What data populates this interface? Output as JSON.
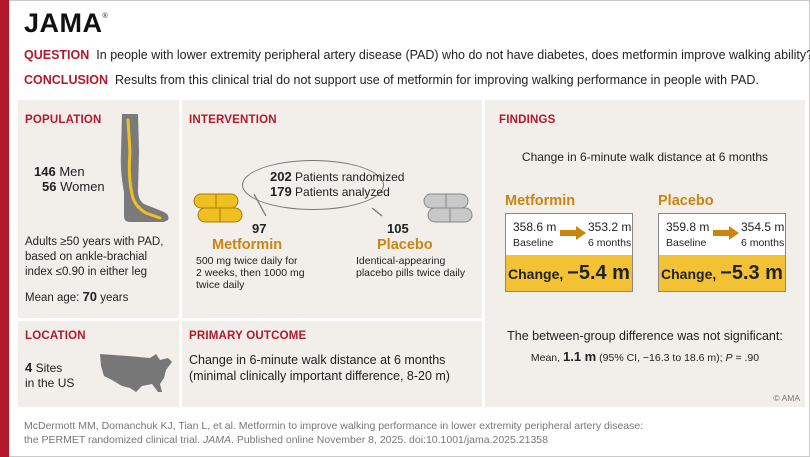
{
  "brand": {
    "logo": "JAMA"
  },
  "question": {
    "label": "QUESTION",
    "text": "In people with lower extremity peripheral artery disease (PAD) who do not have diabetes, does metformin improve walking ability?"
  },
  "conclusion": {
    "label": "CONCLUSION",
    "text": "Results from this clinical trial do not support use of metformin for improving walking performance in people with PAD."
  },
  "population": {
    "title": "POPULATION",
    "men_count": "146",
    "men_label": "Men",
    "women_count": "56",
    "women_label": "Women",
    "desc_1": "Adults ≥50 years with PAD,",
    "desc_2": "based on ankle-brachial",
    "desc_3": "index ≤0.90 in either leg",
    "mean_age_label": "Mean age:",
    "mean_age_value": "70",
    "mean_age_unit": "years"
  },
  "location": {
    "title": "LOCATION",
    "sites_count": "4",
    "sites_label": "Sites",
    "region": "in the US"
  },
  "intervention": {
    "title": "INTERVENTION",
    "randomized_count": "202",
    "randomized_label": "Patients randomized",
    "analyzed_count": "179",
    "analyzed_label": "Patients analyzed",
    "metformin": {
      "count": "97",
      "name": "Metformin",
      "desc_1": "500 mg twice daily for",
      "desc_2": "2 weeks, then 1000 mg",
      "desc_3": "twice daily"
    },
    "placebo": {
      "count": "105",
      "name": "Placebo",
      "desc_1": "Identical-appearing",
      "desc_2": "placebo pills twice daily"
    }
  },
  "primary_outcome": {
    "title": "PRIMARY OUTCOME",
    "line_1": "Change in 6-minute walk distance at 6 months",
    "line_2": "(minimal clinically important difference, 8-20 m)"
  },
  "findings": {
    "title": "FINDINGS",
    "subtitle": "Change in 6-minute walk distance at 6 months",
    "metformin": {
      "name": "Metformin",
      "baseline_value": "358.6 m",
      "baseline_label": "Baseline",
      "followup_value": "353.2 m",
      "followup_label": "6 months",
      "change_label": "Change,",
      "change_value": "−5.4 m"
    },
    "placebo": {
      "name": "Placebo",
      "baseline_value": "359.8 m",
      "baseline_label": "Baseline",
      "followup_value": "354.5 m",
      "followup_label": "6 months",
      "change_label": "Change,",
      "change_value": "−5.3 m"
    },
    "diff_statement": "The between-group difference was not significant:",
    "mean_label": "Mean,",
    "mean_value": "1.1 m",
    "ci_text": "(95% CI, −16.3 to 18.6 m);",
    "p_label": "P",
    "p_value": "= .90"
  },
  "copyright": "© AMA",
  "citation": {
    "line_1": "McDermott MM, Domanchuk KJ, Tian L, et al. Metformin to improve walking performance in lower extremity peripheral artery disease:",
    "line_2_a": "the PERMET randomized clinical trial.",
    "line_2_journal": "JAMA",
    "line_2_b": ". Published online November 8, 2025. doi:10.1001/jama.2025.21358"
  },
  "colors": {
    "brand_red": "#b3182d",
    "gold": "#c9850f",
    "highlight_yellow": "#f3c234",
    "panel_bg": "#f2efea",
    "pill_yellow": "#f0c020",
    "pill_gray": "#c8c8c8"
  },
  "icons": [
    "leg-icon",
    "pill-icon",
    "us-map-icon",
    "arrow-icon"
  ]
}
